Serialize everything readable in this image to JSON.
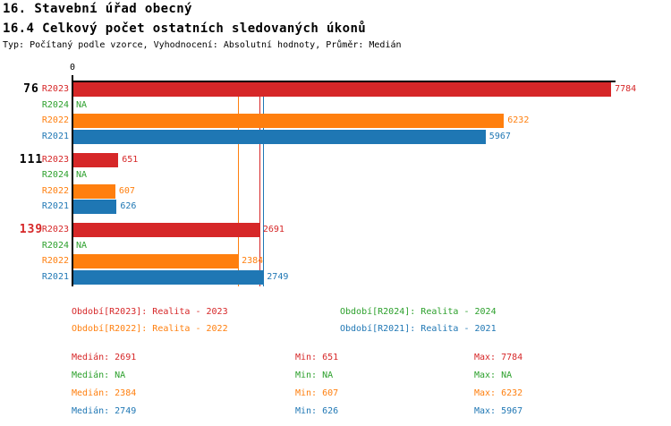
{
  "chart_data": {
    "type": "bar",
    "orientation": "horizontal",
    "title": "16. Stavební úřad obecný",
    "subtitle": "16.4 Celkový počet ostatních sledovaných úkonů",
    "meta": "Typ: Počítaný podle vzorce, Vyhodnocení: Absolutní hodnoty, Průměr: Medián",
    "xlabel": "",
    "ylabel": "",
    "xlim": [
      0,
      7860
    ],
    "x_origin_label": "0",
    "grid": false,
    "na_text": "NA",
    "series": [
      {
        "id": "R2023",
        "color": "#d62728"
      },
      {
        "id": "R2024",
        "color": "#2ca02c"
      },
      {
        "id": "R2022",
        "color": "#ff7f0e"
      },
      {
        "id": "R2021",
        "color": "#1f77b4"
      }
    ],
    "groups": [
      {
        "label": "76",
        "label_color": "#000000",
        "values": {
          "R2023": 7784,
          "R2024": null,
          "R2022": 6232,
          "R2021": 5967
        }
      },
      {
        "label": "111",
        "label_color": "#000000",
        "values": {
          "R2023": 651,
          "R2024": null,
          "R2022": 607,
          "R2021": 626
        }
      },
      {
        "label": "139",
        "label_color": "#d62728",
        "values": {
          "R2023": 2691,
          "R2024": null,
          "R2022": 2384,
          "R2021": 2749
        }
      }
    ],
    "median_lines": [
      {
        "series": "R2022",
        "value": 2384,
        "color": "#ff7f0e"
      },
      {
        "series": "R2023",
        "value": 2691,
        "color": "#d62728"
      },
      {
        "series": "R2021",
        "value": 2749,
        "color": "#1f77b4"
      }
    ],
    "legend": [
      {
        "text": "Období[R2023]: Realita - 2023",
        "color": "#d62728",
        "col": 0,
        "row": 0
      },
      {
        "text": "Období[R2024]: Realita - 2024",
        "color": "#2ca02c",
        "col": 1,
        "row": 0
      },
      {
        "text": "Období[R2022]: Realita - 2022",
        "color": "#ff7f0e",
        "col": 0,
        "row": 1
      },
      {
        "text": "Období[R2021]: Realita - 2021",
        "color": "#1f77b4",
        "col": 1,
        "row": 1
      }
    ],
    "stats": [
      {
        "series": "R2023",
        "color": "#d62728",
        "median": "Medián: 2691",
        "min": "Min: 651",
        "max": "Max: 7784"
      },
      {
        "series": "R2024",
        "color": "#2ca02c",
        "median": "Medián: NA",
        "min": "Min: NA",
        "max": "Max: NA"
      },
      {
        "series": "R2022",
        "color": "#ff7f0e",
        "median": "Medián: 2384",
        "min": "Min: 607",
        "max": "Max: 6232"
      },
      {
        "series": "R2021",
        "color": "#1f77b4",
        "median": "Medián: 2749",
        "min": "Min: 626",
        "max": "Max: 5967"
      }
    ]
  }
}
